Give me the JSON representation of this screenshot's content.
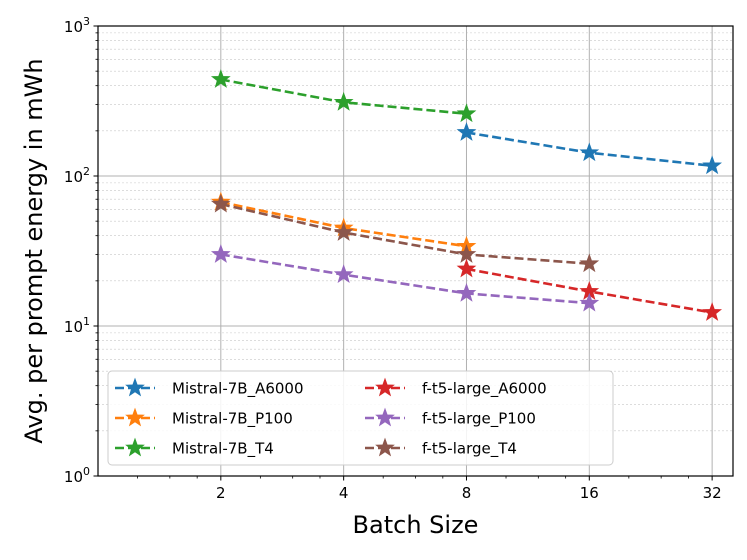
{
  "chart_data": {
    "type": "line",
    "title": "",
    "xlabel": "Batch Size",
    "ylabel": "Avg. per prompt energy in mWh",
    "x_scale": "log2",
    "y_scale": "log10",
    "xlim": [
      1,
      36
    ],
    "ylim": [
      1,
      1000
    ],
    "x_ticks": [
      2,
      4,
      8,
      16,
      32
    ],
    "x_tick_labels": [
      "2",
      "4",
      "8",
      "16",
      "32"
    ],
    "y_ticks": [
      1,
      10,
      100,
      1000
    ],
    "y_tick_labels": [
      {
        "base": "10",
        "exp": "0"
      },
      {
        "base": "10",
        "exp": "1"
      },
      {
        "base": "10",
        "exp": "2"
      },
      {
        "base": "10",
        "exp": "3"
      }
    ],
    "grid": true,
    "legend_position": "lower-left",
    "series": [
      {
        "name": "Mistral-7B_A6000",
        "color": "#1f77b4",
        "x": [
          8,
          16,
          32
        ],
        "values": [
          195,
          143,
          117
        ]
      },
      {
        "name": "Mistral-7B_P100",
        "color": "#ff7f0e",
        "x": [
          2,
          4,
          8
        ],
        "values": [
          67,
          45,
          34
        ]
      },
      {
        "name": "Mistral-7B_T4",
        "color": "#2ca02c",
        "x": [
          2,
          4,
          8
        ],
        "values": [
          440,
          310,
          260
        ]
      },
      {
        "name": "f-t5-large_A6000",
        "color": "#d62728",
        "x": [
          8,
          16,
          32
        ],
        "values": [
          24,
          17,
          12.3
        ]
      },
      {
        "name": "f-t5-large_P100",
        "color": "#9467bd",
        "x": [
          2,
          4,
          8,
          16
        ],
        "values": [
          30,
          22,
          16.5,
          14.2
        ]
      },
      {
        "name": "f-t5-large_T4",
        "color": "#8c564b",
        "x": [
          2,
          4,
          8,
          16
        ],
        "values": [
          65,
          42,
          30,
          26
        ]
      }
    ]
  }
}
